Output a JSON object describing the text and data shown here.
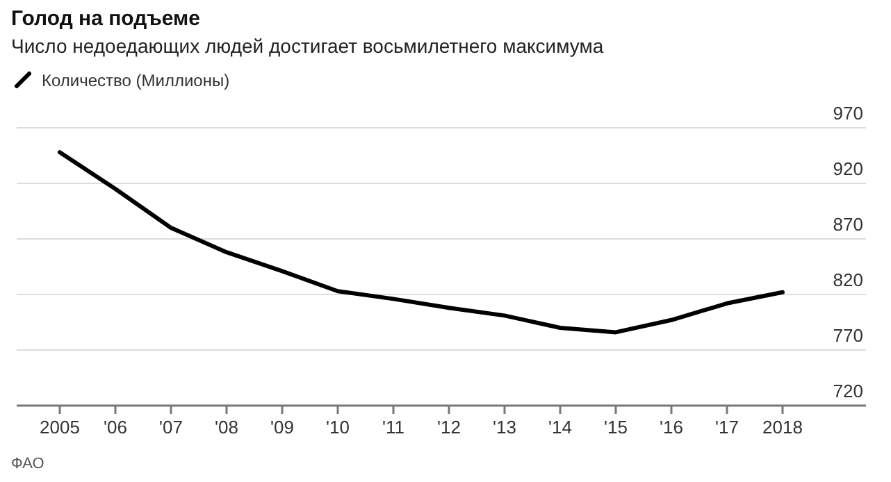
{
  "chart_data": {
    "type": "line",
    "title": "Голод на подъеме",
    "subtitle": "Число недоедающих людей достигает восьмилетнего максимума",
    "categories": [
      "2005",
      "'06",
      "'07",
      "'08",
      "'09",
      "'10",
      "'11",
      "'12",
      "'13",
      "'14",
      "'15",
      "'16",
      "'17",
      "2018"
    ],
    "series": [
      {
        "name": "Количество (Миллионы)",
        "color": "#000000",
        "values": [
          948,
          915,
          880,
          858,
          841,
          823,
          816,
          808,
          801,
          790,
          786,
          797,
          812,
          822
        ]
      }
    ],
    "ylim": [
      720,
      970
    ],
    "yticks": [
      720,
      770,
      820,
      870,
      920,
      970
    ],
    "grid": "y",
    "legend": "top left",
    "marker": "none",
    "line_style": "solid",
    "annotations": [
      "ФАО"
    ]
  }
}
